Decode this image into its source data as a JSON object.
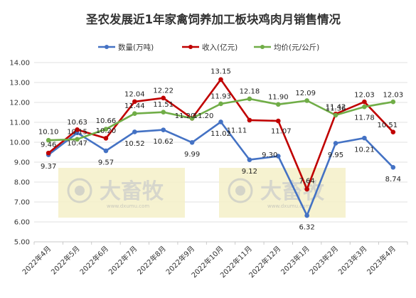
{
  "chart_data": {
    "type": "line",
    "title": "圣农发展近1年家禽饲养加工板块鸡肉月销售情况",
    "categories": [
      "2022年4月",
      "2022年5月",
      "2022年6月",
      "2022年7月",
      "2022年8月",
      "2022年9月",
      "2022年10月",
      "2022年11月",
      "2022年12月",
      "2023年1月",
      "2023年2月",
      "2023年3月",
      "2023年4月"
    ],
    "ylim": [
      5.0,
      14.0
    ],
    "yticks": [
      "5.00",
      "6.00",
      "7.00",
      "8.00",
      "9.00",
      "10.00",
      "11.00",
      "12.00",
      "13.00",
      "14.00"
    ],
    "grid": true,
    "legend_position": "top",
    "series": [
      {
        "name": "数量(万吨)",
        "color": "#4472C4",
        "values": [
          9.37,
          10.47,
          9.57,
          10.52,
          10.62,
          9.99,
          11.02,
          9.12,
          9.3,
          6.32,
          9.95,
          10.21,
          8.74
        ],
        "labels": [
          "9.37",
          "10.47",
          "9.57",
          "10.52",
          "10.62",
          "9.99",
          "11.02",
          "9.12",
          "9.30",
          "6.32",
          "9.95",
          "10.21",
          "8.74"
        ]
      },
      {
        "name": "收入(亿元)",
        "color": "#C00000",
        "values": [
          9.46,
          10.63,
          10.2,
          12.04,
          12.22,
          11.2,
          13.15,
          11.11,
          11.07,
          7.64,
          11.42,
          12.03,
          10.51
        ],
        "labels": [
          "9.46",
          "10.63",
          "10.20",
          "12.04",
          "12.22",
          "11.20",
          "13.15",
          "11.11",
          "11.07",
          "7.64",
          "11.42",
          "12.03",
          "10.51"
        ]
      },
      {
        "name": "均价(元/公斤)",
        "color": "#70AD47",
        "values": [
          10.1,
          10.15,
          10.66,
          11.44,
          11.51,
          11.2,
          11.93,
          12.18,
          11.9,
          12.09,
          11.36,
          11.78,
          12.03
        ],
        "labels": [
          "10.10",
          "10.15",
          "10.66",
          "11.44",
          "11.51",
          "11.20",
          "11.93",
          "12.18",
          "11.90",
          "12.09",
          "11.36",
          "11.78",
          "12.03"
        ]
      }
    ]
  },
  "watermark": {
    "brand": "大畜牧",
    "url": "www.dxumu.com",
    "bg_color": "#f5f0c8"
  }
}
